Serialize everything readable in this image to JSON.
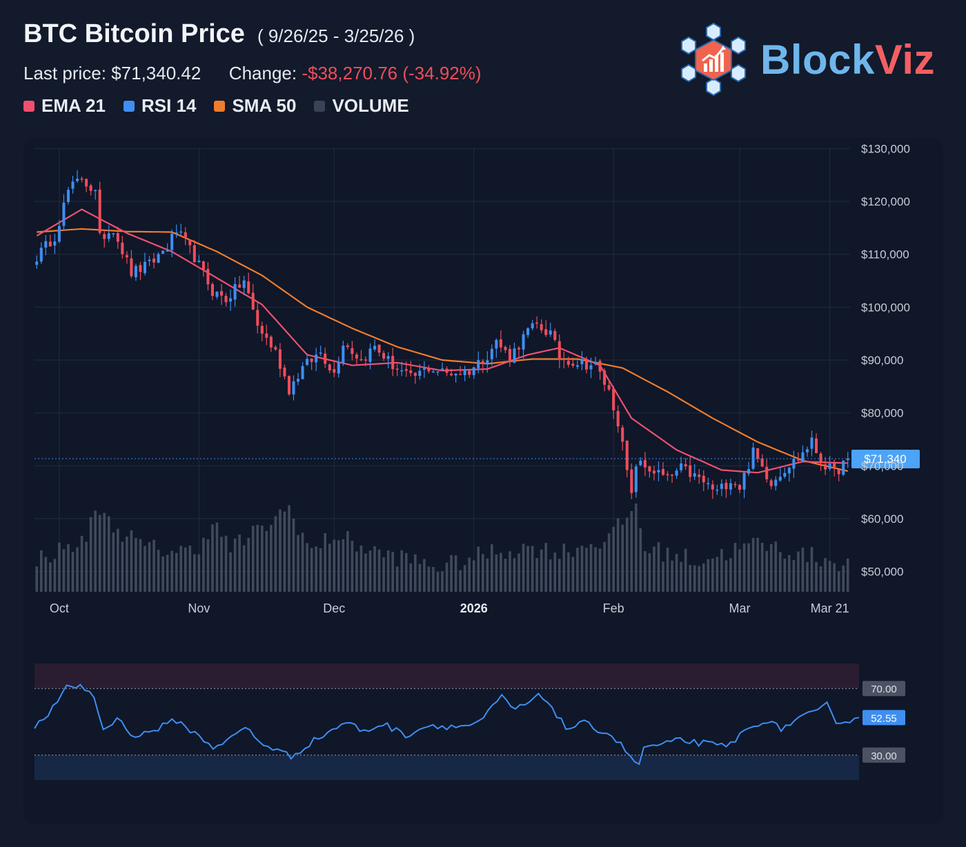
{
  "header": {
    "title": "BTC Bitcoin Price",
    "range": "( 9/26/25 - 3/25/26 )",
    "last_price_label": "Last price:",
    "last_price": "$71,340.42",
    "change_label": "Change:",
    "change_value": "-$38,270.76 (-34.92%)"
  },
  "legend": [
    {
      "label": "EMA 21",
      "color": "#f0506e"
    },
    {
      "label": "RSI 14",
      "color": "#3f8ef0"
    },
    {
      "label": "SMA 50",
      "color": "#f07c2c"
    },
    {
      "label": "VOLUME",
      "color": "#3a4356"
    }
  ],
  "logo": {
    "part1": "Block",
    "part2": "Viz",
    "color1": "#6fb6ec",
    "color2": "#f45f63",
    "icon": "blockchain-chart-logo-icon"
  },
  "colors": {
    "up": "#3f8ef0",
    "down": "#ef4d5a",
    "ema": "#f0506e",
    "sma": "#f07c2c",
    "rsi": "#3f8ef0",
    "volume": "#4a5265",
    "grid": "#222c40",
    "axis_text": "#c7ccd6"
  },
  "chart_data": [
    {
      "type": "candlestick",
      "title": "BTC Bitcoin Price",
      "ylim": [
        45000,
        132000
      ],
      "y_ticks": [
        50000,
        60000,
        70000,
        80000,
        90000,
        100000,
        110000,
        120000,
        130000
      ],
      "y_tick_labels": [
        "$50,000",
        "$60,000",
        "$70,000",
        "$80,000",
        "$90,000",
        "$100,000",
        "$110,000",
        "$120,000",
        "$130,000"
      ],
      "x_ticks": [
        {
          "label": "Oct",
          "date": "2025-10-01",
          "bold": false
        },
        {
          "label": "Nov",
          "date": "2025-11-01",
          "bold": false
        },
        {
          "label": "Dec",
          "date": "2025-12-01",
          "bold": false
        },
        {
          "label": "2026",
          "date": "2026-01-01",
          "bold": true
        },
        {
          "label": "Feb",
          "date": "2026-02-01",
          "bold": false
        },
        {
          "label": "Mar",
          "date": "2026-03-01",
          "bold": false
        },
        {
          "label": "Mar 21",
          "date": "2026-03-21",
          "bold": false
        }
      ],
      "start_date": "2025-09-26",
      "last_price_marker": {
        "value": 71340,
        "label": "$71,340"
      },
      "close_keypoints": [
        [
          "2025-09-26",
          109500
        ],
        [
          "2025-09-30",
          113500
        ],
        [
          "2025-10-03",
          122000
        ],
        [
          "2025-10-06",
          124500
        ],
        [
          "2025-10-09",
          121500
        ],
        [
          "2025-10-10",
          113000
        ],
        [
          "2025-10-13",
          115000
        ],
        [
          "2025-10-17",
          106500
        ],
        [
          "2025-10-21",
          108000
        ],
        [
          "2025-10-25",
          111500
        ],
        [
          "2025-10-27",
          114500
        ],
        [
          "2025-10-31",
          109500
        ],
        [
          "2025-11-04",
          103000
        ],
        [
          "2025-11-07",
          101500
        ],
        [
          "2025-11-11",
          105000
        ],
        [
          "2025-11-14",
          96500
        ],
        [
          "2025-11-18",
          91500
        ],
        [
          "2025-11-21",
          84500
        ],
        [
          "2025-11-24",
          88500
        ],
        [
          "2025-11-28",
          91500
        ],
        [
          "2025-12-01",
          87500
        ],
        [
          "2025-12-03",
          93500
        ],
        [
          "2025-12-07",
          90000
        ],
        [
          "2025-12-10",
          92500
        ],
        [
          "2025-12-14",
          89000
        ],
        [
          "2025-12-18",
          86500
        ],
        [
          "2025-12-22",
          88500
        ],
        [
          "2025-12-26",
          87500
        ],
        [
          "2025-12-31",
          88000
        ],
        [
          "2026-01-04",
          91000
        ],
        [
          "2026-01-06",
          93500
        ],
        [
          "2026-01-09",
          90500
        ],
        [
          "2026-01-13",
          95500
        ],
        [
          "2026-01-15",
          96500
        ],
        [
          "2026-01-18",
          95000
        ],
        [
          "2026-01-20",
          90500
        ],
        [
          "2026-01-24",
          89500
        ],
        [
          "2026-01-28",
          89000
        ],
        [
          "2026-01-31",
          84000
        ],
        [
          "2026-02-02",
          78500
        ],
        [
          "2026-02-05",
          64000
        ],
        [
          "2026-02-06",
          70500
        ],
        [
          "2026-02-10",
          69000
        ],
        [
          "2026-02-13",
          67500
        ],
        [
          "2026-02-16",
          69500
        ],
        [
          "2026-02-20",
          67500
        ],
        [
          "2026-02-24",
          65000
        ],
        [
          "2026-02-27",
          67500
        ],
        [
          "2026-03-01",
          66000
        ],
        [
          "2026-03-04",
          72500
        ],
        [
          "2026-03-08",
          67000
        ],
        [
          "2026-03-11",
          69500
        ],
        [
          "2026-03-14",
          71500
        ],
        [
          "2026-03-17",
          74500
        ],
        [
          "2026-03-19",
          71000
        ],
        [
          "2026-03-22",
          68500
        ],
        [
          "2026-03-25",
          71340
        ]
      ],
      "ema21_keypoints": [
        [
          "2025-09-26",
          113500
        ],
        [
          "2025-10-06",
          118500
        ],
        [
          "2025-10-16",
          114000
        ],
        [
          "2025-10-26",
          110500
        ],
        [
          "2025-11-05",
          105500
        ],
        [
          "2025-11-15",
          100500
        ],
        [
          "2025-11-25",
          91000
        ],
        [
          "2025-12-05",
          89000
        ],
        [
          "2025-12-15",
          89500
        ],
        [
          "2025-12-25",
          88000
        ],
        [
          "2026-01-04",
          88300
        ],
        [
          "2026-01-13",
          91000
        ],
        [
          "2026-01-20",
          92300
        ],
        [
          "2026-01-29",
          89000
        ],
        [
          "2026-02-05",
          79000
        ],
        [
          "2026-02-15",
          73000
        ],
        [
          "2026-02-25",
          69200
        ],
        [
          "2026-03-05",
          68700
        ],
        [
          "2026-03-15",
          70800
        ],
        [
          "2026-03-25",
          70500
        ]
      ],
      "sma50_keypoints": [
        [
          "2025-09-26",
          114200
        ],
        [
          "2025-10-06",
          114800
        ],
        [
          "2025-10-16",
          114300
        ],
        [
          "2025-10-26",
          114200
        ],
        [
          "2025-11-05",
          110500
        ],
        [
          "2025-11-15",
          106000
        ],
        [
          "2025-11-25",
          100000
        ],
        [
          "2025-12-05",
          96000
        ],
        [
          "2025-12-15",
          92500
        ],
        [
          "2025-12-25",
          90000
        ],
        [
          "2026-01-04",
          89300
        ],
        [
          "2026-01-14",
          90200
        ],
        [
          "2026-01-24",
          90200
        ],
        [
          "2026-02-03",
          88500
        ],
        [
          "2026-02-13",
          84000
        ],
        [
          "2026-02-23",
          79000
        ],
        [
          "2026-03-05",
          74500
        ],
        [
          "2026-03-15",
          71000
        ],
        [
          "2026-03-25",
          69000
        ]
      ],
      "volume_keypoints": [
        [
          "2025-09-26",
          0.38
        ],
        [
          "2025-10-06",
          0.55
        ],
        [
          "2025-10-10",
          0.97
        ],
        [
          "2025-10-12",
          0.78
        ],
        [
          "2025-10-20",
          0.5
        ],
        [
          "2025-10-31",
          0.45
        ],
        [
          "2025-11-04",
          0.78
        ],
        [
          "2025-11-08",
          0.5
        ],
        [
          "2025-11-14",
          0.68
        ],
        [
          "2025-11-21",
          0.95
        ],
        [
          "2025-11-26",
          0.45
        ],
        [
          "2025-12-01",
          0.65
        ],
        [
          "2025-12-10",
          0.45
        ],
        [
          "2025-12-25",
          0.28
        ],
        [
          "2026-01-05",
          0.45
        ],
        [
          "2026-01-14",
          0.5
        ],
        [
          "2026-01-20",
          0.45
        ],
        [
          "2026-01-31",
          0.6
        ],
        [
          "2026-02-06",
          0.98
        ],
        [
          "2026-02-08",
          0.5
        ],
        [
          "2026-02-20",
          0.35
        ],
        [
          "2026-03-05",
          0.55
        ],
        [
          "2026-03-15",
          0.42
        ],
        [
          "2026-03-25",
          0.32
        ]
      ]
    },
    {
      "type": "line",
      "title": "RSI 14",
      "ylim": [
        15,
        85
      ],
      "levels": [
        {
          "value": 70,
          "label": "70.00"
        },
        {
          "value": 30,
          "label": "30.00"
        }
      ],
      "current": {
        "value": 52.55,
        "label": "52.55"
      },
      "rsi_keypoints": [
        [
          "2025-09-26",
          46
        ],
        [
          "2025-09-30",
          58
        ],
        [
          "2025-10-03",
          70
        ],
        [
          "2025-10-06",
          72
        ],
        [
          "2025-10-09",
          65
        ],
        [
          "2025-10-11",
          45
        ],
        [
          "2025-10-14",
          52
        ],
        [
          "2025-10-18",
          41
        ],
        [
          "2025-10-22",
          45
        ],
        [
          "2025-10-27",
          51
        ],
        [
          "2025-10-31",
          43
        ],
        [
          "2025-11-04",
          35
        ],
        [
          "2025-11-08",
          40
        ],
        [
          "2025-11-11",
          47
        ],
        [
          "2025-11-14",
          38
        ],
        [
          "2025-11-18",
          33
        ],
        [
          "2025-11-21",
          29
        ],
        [
          "2025-11-25",
          37
        ],
        [
          "2025-11-28",
          42
        ],
        [
          "2025-12-03",
          50
        ],
        [
          "2025-12-07",
          44
        ],
        [
          "2025-12-11",
          49
        ],
        [
          "2025-12-16",
          42
        ],
        [
          "2025-12-21",
          48
        ],
        [
          "2025-12-27",
          47
        ],
        [
          "2026-01-01",
          49
        ],
        [
          "2026-01-06",
          65
        ],
        [
          "2026-01-09",
          57
        ],
        [
          "2026-01-14",
          65
        ],
        [
          "2026-01-16",
          63
        ],
        [
          "2026-01-20",
          46
        ],
        [
          "2026-01-24",
          49
        ],
        [
          "2026-01-30",
          42
        ],
        [
          "2026-02-02",
          33
        ],
        [
          "2026-02-05",
          23
        ],
        [
          "2026-02-06",
          35
        ],
        [
          "2026-02-10",
          36
        ],
        [
          "2026-02-14",
          39
        ],
        [
          "2026-02-19",
          37
        ],
        [
          "2026-02-24",
          35
        ],
        [
          "2026-02-28",
          44
        ],
        [
          "2026-03-04",
          51
        ],
        [
          "2026-03-08",
          46
        ],
        [
          "2026-03-12",
          52
        ],
        [
          "2026-03-16",
          56
        ],
        [
          "2026-03-18",
          60
        ],
        [
          "2026-03-20",
          51
        ],
        [
          "2026-03-22",
          50
        ],
        [
          "2026-03-25",
          52.55
        ]
      ]
    }
  ]
}
